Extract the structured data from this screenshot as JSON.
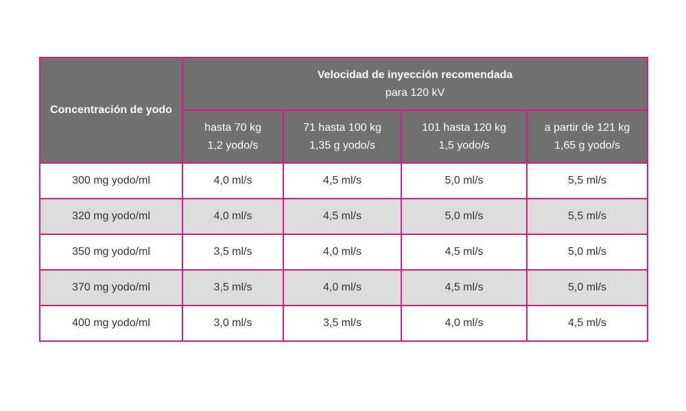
{
  "table": {
    "corner_header": "Concentración de yodo",
    "group_header": {
      "title": "Velocidad de inyección recomendada",
      "subtitle": "para 120 kV"
    },
    "columns": [
      {
        "weight": "hasta 70 kg",
        "rate": "1,2 yodo/s"
      },
      {
        "weight": "71 hasta 100 kg",
        "rate": "1,35 g yodo/s"
      },
      {
        "weight": "101 hasta 120 kg",
        "rate": "1,5 yodo/s"
      },
      {
        "weight": "a partir de 121 kg",
        "rate": "1,65 g yodo/s"
      }
    ],
    "rows": [
      {
        "label": "300 mg yodo/ml",
        "values": [
          "4,0 ml/s",
          "4,5 ml/s",
          "5,0 ml/s",
          "5,5 ml/s"
        ]
      },
      {
        "label": "320 mg yodo/ml",
        "values": [
          "4,0 ml/s",
          "4,5 ml/s",
          "5,0 ml/s",
          "5,5 ml/s"
        ]
      },
      {
        "label": "350 mg yodo/ml",
        "values": [
          "3,5 ml/s",
          "4,0 ml/s",
          "4,5 ml/s",
          "5,0 ml/s"
        ]
      },
      {
        "label": "370 mg yodo/ml",
        "values": [
          "3,5 ml/s",
          "4,0 ml/s",
          "4,5 ml/s",
          "5,0 ml/s"
        ]
      },
      {
        "label": "400 mg yodo/ml",
        "values": [
          "3,0 ml/s",
          "3,5 ml/s",
          "4,0 ml/s",
          "4,5 ml/s"
        ]
      }
    ],
    "colors": {
      "border": "#e0187f",
      "header_bg": "#707070",
      "alt_row_bg": "#dcdcdc"
    }
  }
}
